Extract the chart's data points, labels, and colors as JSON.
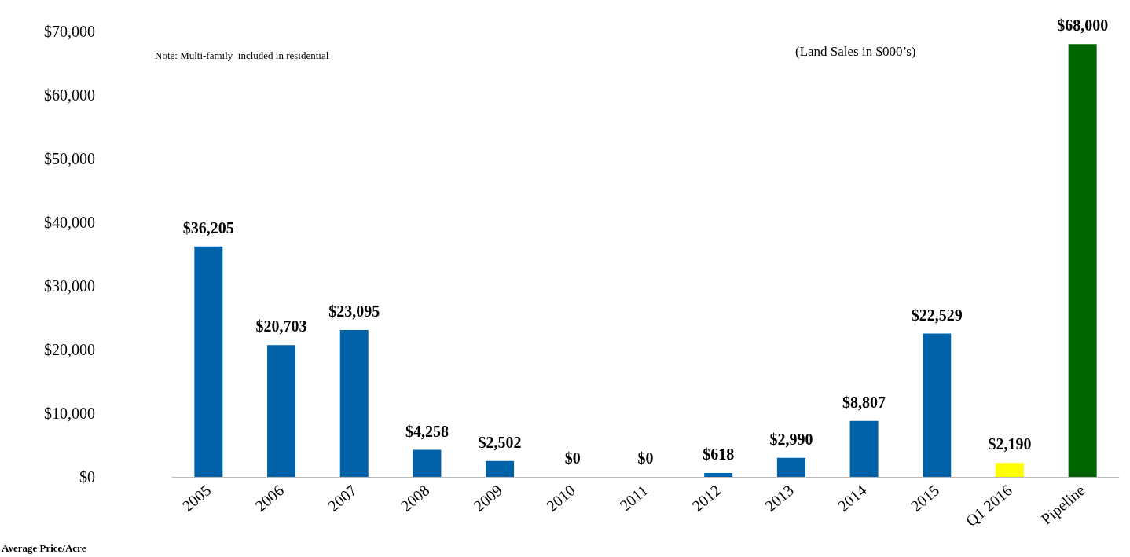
{
  "chart_data": {
    "type": "bar",
    "categories": [
      "2005",
      "2006",
      "2007",
      "2008",
      "2009",
      "2010",
      "2011",
      "2012",
      "2013",
      "2014",
      "2015",
      "Q1 2016",
      "Pipeline"
    ],
    "values": [
      36205,
      20703,
      23095,
      4258,
      2502,
      0,
      0,
      618,
      2990,
      8807,
      22529,
      2190,
      68000
    ],
    "colors": [
      "#0062a8",
      "#0062a8",
      "#0062a8",
      "#0062a8",
      "#0062a8",
      "#0062a8",
      "#0062a8",
      "#0062a8",
      "#0062a8",
      "#0062a8",
      "#0062a8",
      "#ffff00",
      "#006400"
    ],
    "value_labels": [
      "$36,205",
      "$20,703",
      "$23,095",
      "$4,258",
      "$2,502",
      "$0",
      "$0",
      "$618",
      "$2,990",
      "$8,807",
      "$22,529",
      "$2,190",
      "$68,000"
    ],
    "ylim": [
      0,
      70000
    ],
    "yticks": [
      {
        "value": 0,
        "label": "$0"
      },
      {
        "value": 10000,
        "label": "$10,000"
      },
      {
        "value": 20000,
        "label": "$20,000"
      },
      {
        "value": 30000,
        "label": "$30,000"
      },
      {
        "value": 40000,
        "label": "$40,000"
      },
      {
        "value": 50000,
        "label": "$50,000"
      },
      {
        "value": 60000,
        "label": "$60,000"
      },
      {
        "value": 70000,
        "label": "$70,000"
      }
    ],
    "grid": false,
    "annotations": [
      "Note: Multi-family  included in residential",
      "(Land Sales in $000’s)",
      "Average Price/Acre"
    ]
  }
}
